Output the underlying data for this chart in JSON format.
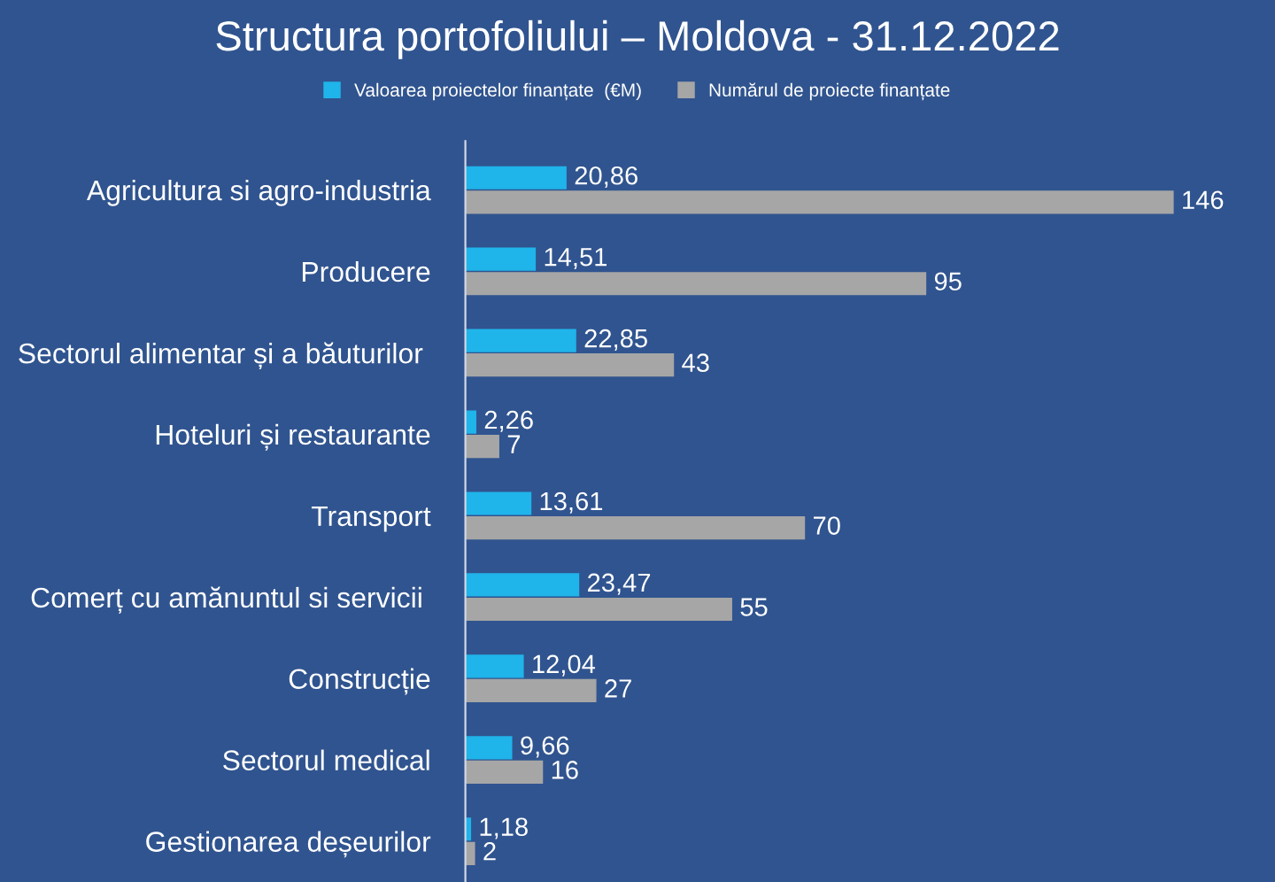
{
  "chart_data": {
    "type": "bar",
    "orientation": "horizontal",
    "title": "Structura portofoliului – Moldova - 31.12.2022",
    "categories": [
      "Agricultura si agro-industria",
      "Producere",
      "Sectorul alimentar și a băuturilor ",
      "Hoteluri și restaurante",
      "Transport",
      "Comerț cu amănuntul si servicii ",
      "Construcție",
      "Sectorul medical",
      "Gestionarea deșeurilor"
    ],
    "series": [
      {
        "name": "Valoarea proiectelor finanțate  (€M)",
        "color": "#1fb4ea",
        "values": [
          20.86,
          14.51,
          22.85,
          2.26,
          13.61,
          23.47,
          12.04,
          9.66,
          1.18
        ],
        "value_labels": [
          "20,86",
          "14,51",
          "22,85",
          "2,26",
          "13,61",
          "23,47",
          "12,04",
          "9,66",
          "1,18"
        ]
      },
      {
        "name": "Numărul de proiecte finanțate",
        "color": "#a6a6a6",
        "values": [
          146,
          95,
          43,
          7,
          70,
          55,
          27,
          16,
          2
        ],
        "value_labels": [
          "146",
          "95",
          "43",
          "7",
          "70",
          "55",
          "27",
          "16",
          "2"
        ]
      }
    ],
    "legend": "top",
    "grid": false
  }
}
